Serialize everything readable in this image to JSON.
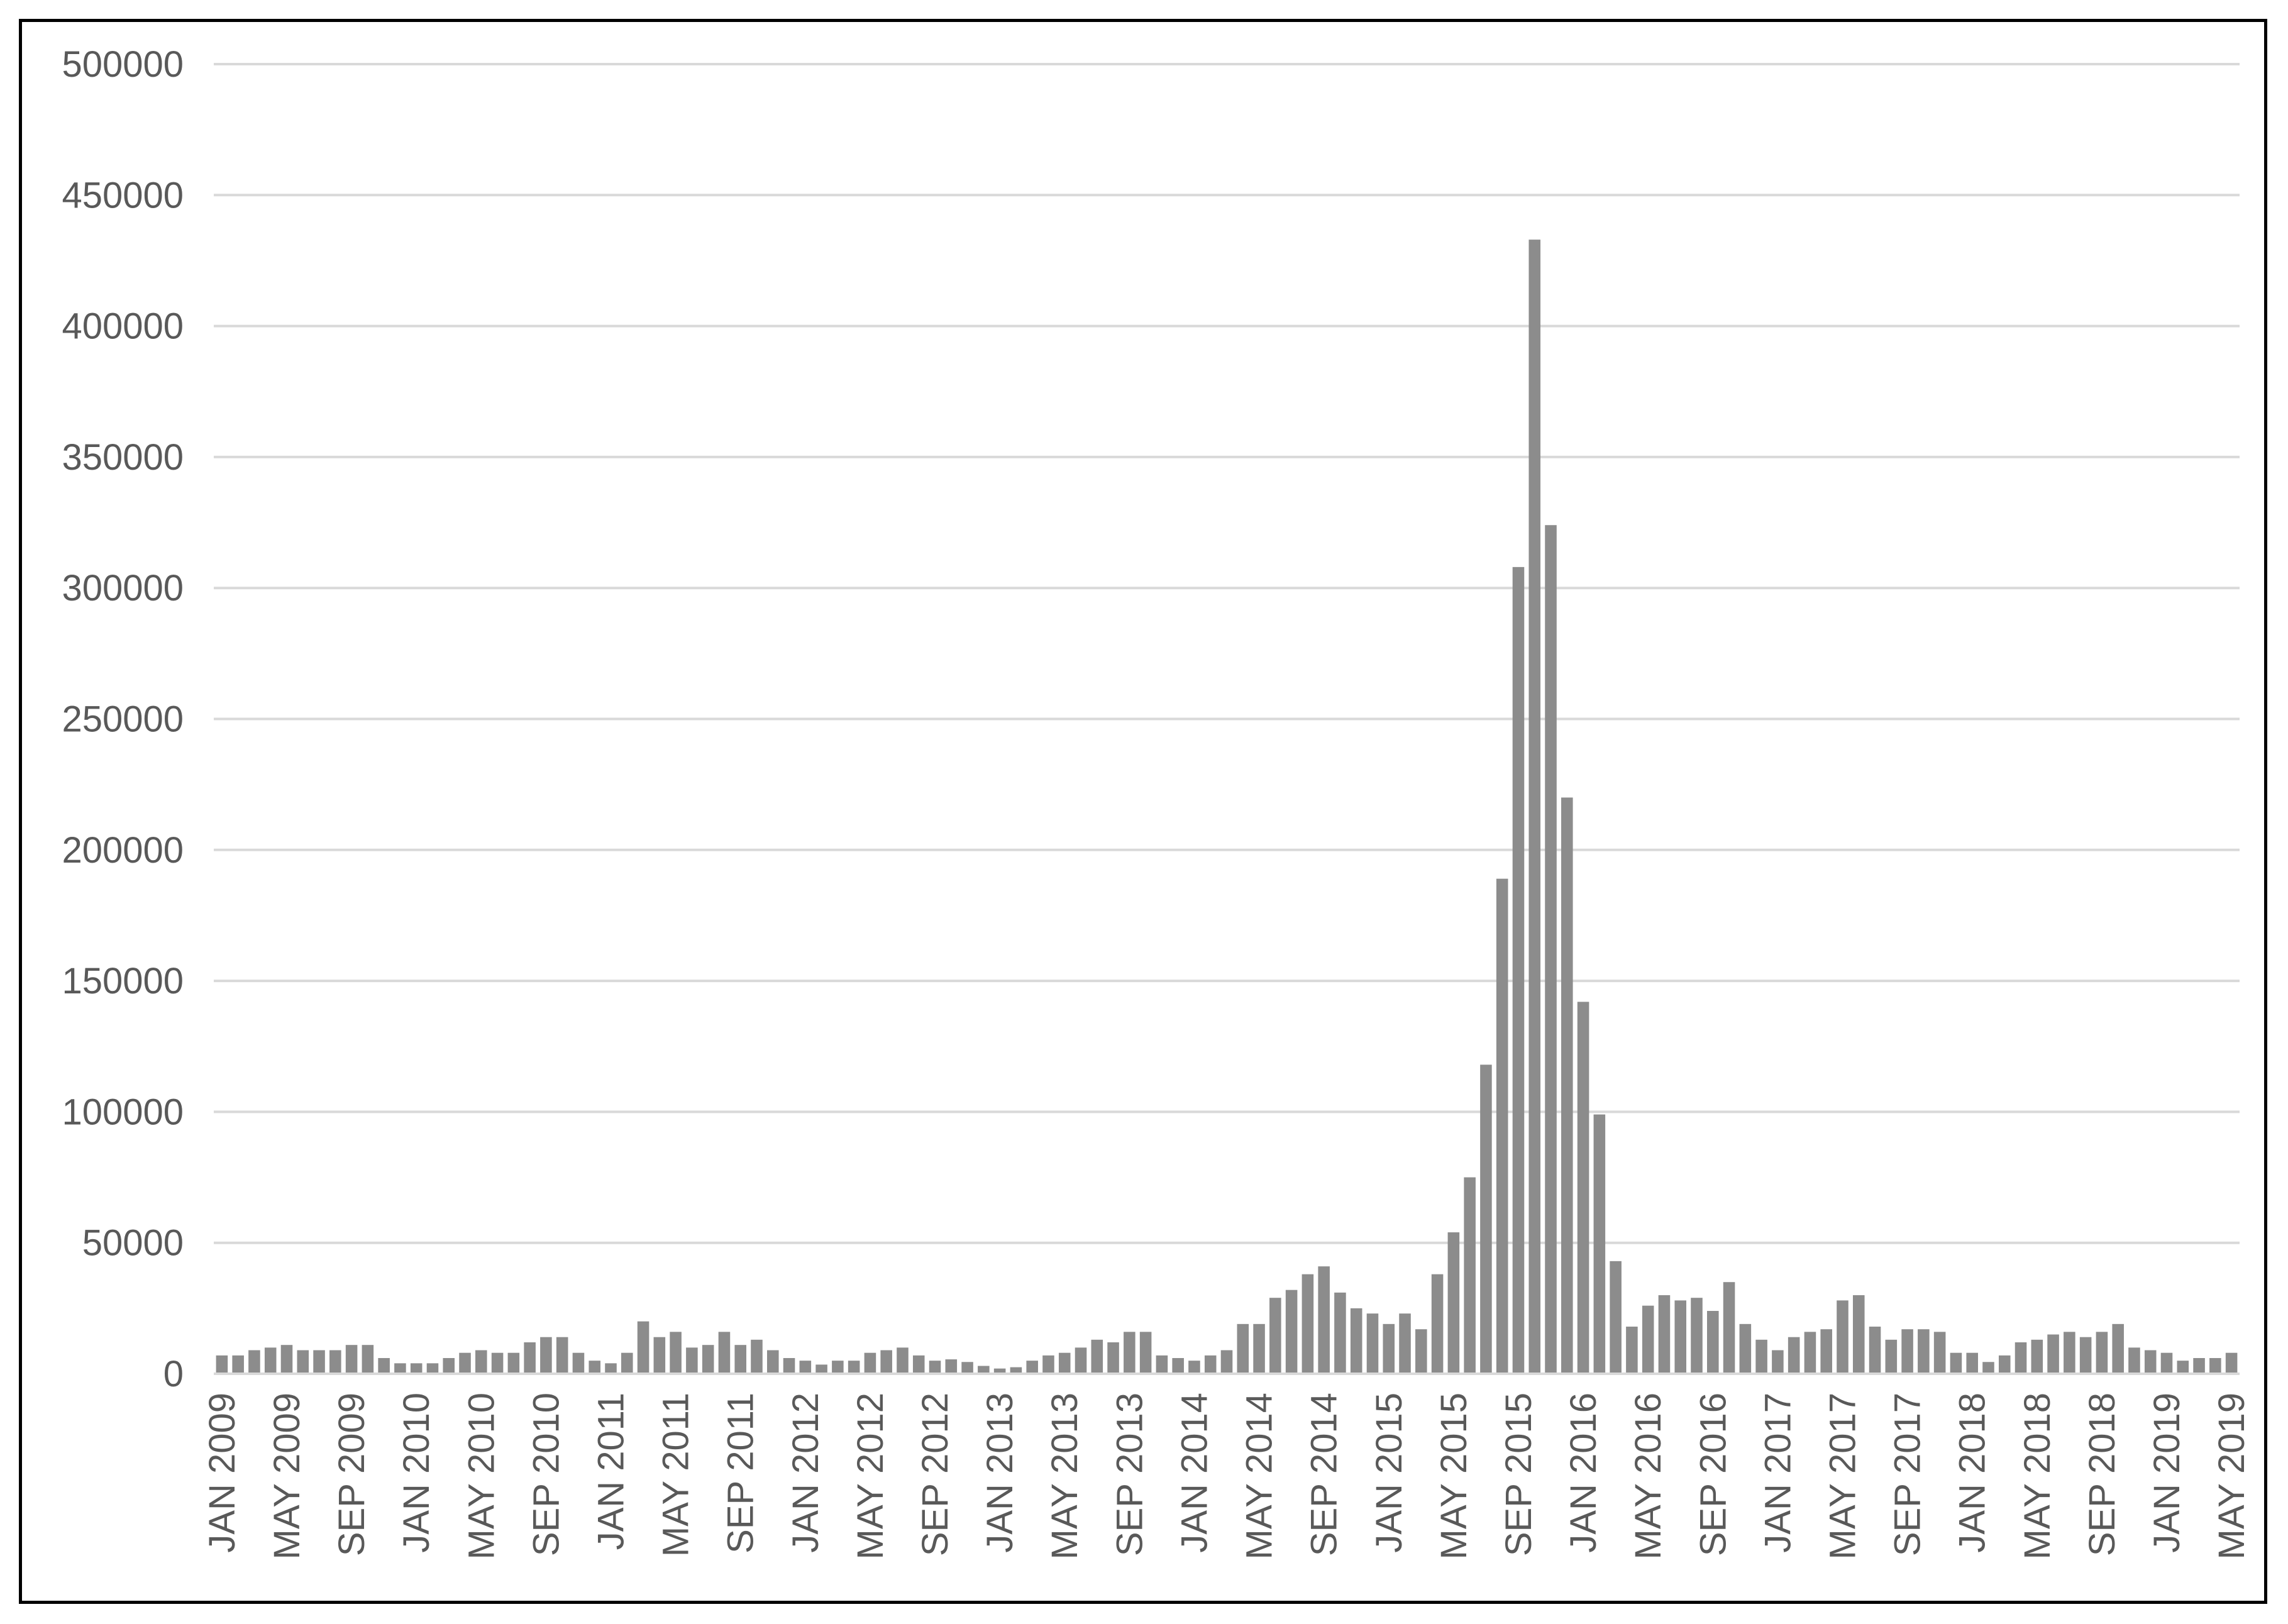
{
  "chart_data": {
    "type": "bar",
    "title": "",
    "xlabel": "",
    "ylabel": "",
    "ylim": [
      0,
      500000
    ],
    "yticks": [
      0,
      50000,
      100000,
      150000,
      200000,
      250000,
      300000,
      350000,
      400000,
      450000,
      500000
    ],
    "ytick_labels": [
      "0",
      "50000",
      "100000",
      "150000",
      "200000",
      "250000",
      "300000",
      "350000",
      "400000",
      "450000",
      "500000"
    ],
    "grid": true,
    "legend": "none",
    "bar_color": "#8c8c8c",
    "grid_color": "#d9d9d9",
    "categories": [
      "JAN 2009",
      "FEB 2009",
      "MAR 2009",
      "APR 2009",
      "MAY 2009",
      "JUN 2009",
      "JUL 2009",
      "AUG 2009",
      "SEP 2009",
      "OCT 2009",
      "NOV 2009",
      "DEC 2009",
      "JAN 2010",
      "FEB 2010",
      "MAR 2010",
      "APR 2010",
      "MAY 2010",
      "JUN 2010",
      "JUL 2010",
      "AUG 2010",
      "SEP 2010",
      "OCT 2010",
      "NOV 2010",
      "DEC 2010",
      "JAN 2011",
      "FEB 2011",
      "MAR 2011",
      "APR 2011",
      "MAY 2011",
      "JUN 2011",
      "JUL 2011",
      "AUG 2011",
      "SEP 2011",
      "OCT 2011",
      "NOV 2011",
      "DEC 2011",
      "JAN 2012",
      "FEB 2012",
      "MAR 2012",
      "APR 2012",
      "MAY 2012",
      "JUN 2012",
      "JUL 2012",
      "AUG 2012",
      "SEP 2012",
      "OCT 2012",
      "NOV 2012",
      "DEC 2012",
      "JAN 2013",
      "FEB 2013",
      "MAR 2013",
      "APR 2013",
      "MAY 2013",
      "JUN 2013",
      "JUL 2013",
      "AUG 2013",
      "SEP 2013",
      "OCT 2013",
      "NOV 2013",
      "DEC 2013",
      "JAN 2014",
      "FEB 2014",
      "MAR 2014",
      "APR 2014",
      "MAY 2014",
      "JUN 2014",
      "JUL 2014",
      "AUG 2014",
      "SEP 2014",
      "OCT 2014",
      "NOV 2014",
      "DEC 2014",
      "JAN 2015",
      "FEB 2015",
      "MAR 2015",
      "APR 2015",
      "MAY 2015",
      "JUN 2015",
      "JUL 2015",
      "AUG 2015",
      "SEP 2015",
      "OCT 2015",
      "NOV 2015",
      "DEC 2015",
      "JAN 2016",
      "FEB 2016",
      "MAR 2016",
      "APR 2016",
      "MAY 2016",
      "JUN 2016",
      "JUL 2016",
      "AUG 2016",
      "SEP 2016",
      "OCT 2016",
      "NOV 2016",
      "DEC 2016",
      "JAN 2017",
      "FEB 2017",
      "MAR 2017",
      "APR 2017",
      "MAY 2017",
      "JUN 2017",
      "JUL 2017",
      "AUG 2017",
      "SEP 2017",
      "OCT 2017",
      "NOV 2017",
      "DEC 2017",
      "JAN 2018",
      "FEB 2018",
      "MAR 2018",
      "APR 2018",
      "MAY 2018",
      "JUN 2018",
      "JUL 2018",
      "AUG 2018",
      "SEP 2018",
      "OCT 2018",
      "NOV 2018",
      "DEC 2018",
      "JAN 2019",
      "FEB 2019",
      "MAR 2019",
      "APR 2019",
      "MAY 2019"
    ],
    "visible_xtick_labels": [
      "JAN 2009",
      "MAY 2009",
      "SEP 2009",
      "JAN 2010",
      "MAY 2010",
      "SEP 2010",
      "JAN 2011",
      "MAY 2011",
      "SEP 2011",
      "JAN 2012",
      "MAY 2012",
      "SEP 2012",
      "JAN 2013",
      "MAY 2013",
      "SEP 2013",
      "JAN 2014",
      "MAY 2014",
      "SEP 2014",
      "JAN 2015",
      "MAY 2015",
      "SEP 2015",
      "JAN 2016",
      "MAY 2016",
      "SEP 2016",
      "JAN 2017",
      "MAY 2017",
      "SEP 2017",
      "JAN 2018",
      "MAY 2018",
      "SEP 2018",
      "JAN 2019",
      "MAY 2019"
    ],
    "values": [
      7000,
      7000,
      9000,
      10000,
      11000,
      9000,
      9000,
      9000,
      11000,
      11000,
      6000,
      4000,
      4000,
      4000,
      6000,
      8000,
      9000,
      8000,
      8000,
      12000,
      14000,
      14000,
      8000,
      5000,
      4000,
      8000,
      20000,
      14000,
      16000,
      10000,
      11000,
      16000,
      11000,
      13000,
      9000,
      6000,
      5000,
      3500,
      5000,
      5000,
      8000,
      9000,
      10000,
      7000,
      5000,
      5500,
      4500,
      3000,
      2000,
      2500,
      5000,
      7000,
      8000,
      10000,
      13000,
      12000,
      16000,
      16000,
      7000,
      6000,
      5000,
      7000,
      9000,
      19000,
      19000,
      29000,
      32000,
      38000,
      41000,
      31000,
      25000,
      23000,
      19000,
      23000,
      17000,
      38000,
      54000,
      75000,
      118000,
      189000,
      308000,
      433000,
      324000,
      220000,
      142000,
      99000,
      43000,
      18000,
      26000,
      30000,
      28000,
      29000,
      24000,
      35000,
      19000,
      13000,
      9000,
      14000,
      16000,
      17000,
      28000,
      30000,
      18000,
      13000,
      17000,
      17000,
      16000,
      8000,
      8000,
      4500,
      7000,
      12000,
      13000,
      15000,
      16000,
      14000,
      16000,
      19000,
      10000,
      9000,
      8000,
      5000,
      6000,
      6000,
      8000
    ]
  }
}
